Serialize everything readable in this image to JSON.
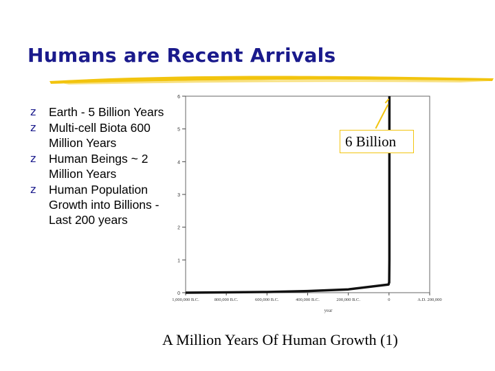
{
  "slide": {
    "title": "Humans are Recent Arrivals",
    "caption": "A Million Years Of Human Growth (1)",
    "bullet_marker": "z",
    "bullets": [
      "Earth - 5 Billion Years",
      "Multi-cell Biota 600 Million Years",
      "Human Beings ~ 2 Million Years",
      "Human Population Growth into Billions  - Last 200 years"
    ]
  },
  "colors": {
    "title": "#1a1a8c",
    "accent_underline": "#f2c40e",
    "callout_border": "#f2c40e",
    "line": "#111111",
    "bullet_marker": "#1a1a8c"
  },
  "chart_data": {
    "type": "line",
    "title": "",
    "xlabel": "year",
    "ylabel": "",
    "x_tick_labels": [
      "1,000,000 B.C.",
      "800,000 B.C.",
      "600,000 B.C.",
      "400,000 B.C.",
      "200,000 B.C.",
      "0",
      "A.D. 200,000"
    ],
    "x_ticks": [
      -1000000,
      -800000,
      -600000,
      -400000,
      -200000,
      0,
      200000
    ],
    "xlim": [
      -1000000,
      200000
    ],
    "y_ticks": [
      0,
      1,
      2,
      3,
      4,
      5,
      6
    ],
    "ylim": [
      0,
      6
    ],
    "grid": false,
    "series": [
      {
        "x": [
          -1000000,
          -800000,
          -600000,
          -400000,
          -200000,
          -2000,
          0,
          1000,
          1800,
          1900,
          1950,
          2000
        ],
        "y": [
          0,
          0.01,
          0.02,
          0.05,
          0.1,
          0.25,
          0.3,
          0.31,
          1.0,
          1.6,
          2.5,
          6.0
        ]
      }
    ],
    "annotation": {
      "text": "6 Billion",
      "x": 2000,
      "y": 6.0
    }
  }
}
